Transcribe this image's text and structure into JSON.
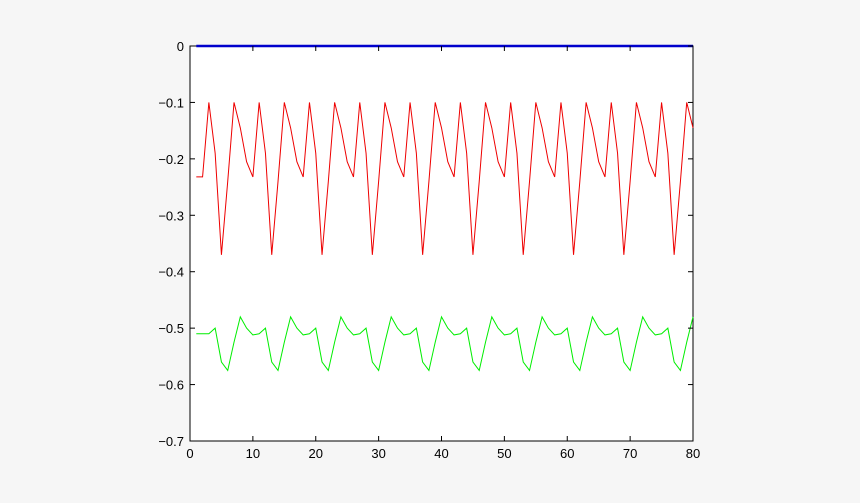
{
  "chart_data": {
    "type": "line",
    "title": "",
    "xlabel": "",
    "ylabel": "",
    "xlim": [
      0,
      80
    ],
    "ylim": [
      -0.7,
      0
    ],
    "grid": false,
    "legend": "none",
    "x_ticks": [
      0,
      10,
      20,
      30,
      40,
      50,
      60,
      70,
      80
    ],
    "x_tick_labels": [
      "0",
      "10",
      "20",
      "30",
      "40",
      "50",
      "60",
      "70",
      "80"
    ],
    "y_ticks": [
      0,
      -0.1,
      -0.2,
      -0.3,
      -0.4,
      -0.5,
      -0.6,
      -0.7
    ],
    "y_tick_labels": [
      "0",
      "−0.1",
      "−0.2",
      "−0.3",
      "−0.4",
      "−0.5",
      "−0.6",
      "−0.7"
    ],
    "x": [
      1,
      2,
      3,
      4,
      5,
      6,
      7,
      8,
      9,
      10,
      11,
      12,
      13,
      14,
      15,
      16,
      17,
      18,
      19,
      20,
      21,
      22,
      23,
      24,
      25,
      26,
      27,
      28,
      29,
      30,
      31,
      32,
      33,
      34,
      35,
      36,
      37,
      38,
      39,
      40,
      41,
      42,
      43,
      44,
      45,
      46,
      47,
      48,
      49,
      50,
      51,
      52,
      53,
      54,
      55,
      56,
      57,
      58,
      59,
      60,
      61,
      62,
      63,
      64,
      65,
      66,
      67,
      68,
      69,
      70,
      71,
      72,
      73,
      74,
      75,
      76,
      77,
      78,
      79,
      80
    ],
    "series": [
      {
        "color": "#0000cc",
        "line_width": 2.5,
        "values": [
          0,
          0,
          0,
          0,
          0,
          0,
          0,
          0,
          0,
          0,
          0,
          0,
          0,
          0,
          0,
          0,
          0,
          0,
          0,
          0,
          0,
          0,
          0,
          0,
          0,
          0,
          0,
          0,
          0,
          0,
          0,
          0,
          0,
          0,
          0,
          0,
          0,
          0,
          0,
          0,
          0,
          0,
          0,
          0,
          0,
          0,
          0,
          0,
          0,
          0,
          0,
          0,
          0,
          0,
          0,
          0,
          0,
          0,
          0,
          0,
          0,
          0,
          0,
          0,
          0,
          0,
          0,
          0,
          0,
          0,
          0,
          0,
          0,
          0,
          0,
          0,
          0,
          0,
          0,
          0
        ]
      },
      {
        "color": "#ee0000",
        "line_width": 1,
        "values": [
          -0.232,
          -0.232,
          -0.1,
          -0.19,
          -0.37,
          -0.24,
          -0.1,
          -0.145,
          -0.205,
          -0.232,
          -0.1,
          -0.19,
          -0.37,
          -0.24,
          -0.1,
          -0.145,
          -0.205,
          -0.232,
          -0.1,
          -0.19,
          -0.37,
          -0.24,
          -0.1,
          -0.145,
          -0.205,
          -0.232,
          -0.1,
          -0.19,
          -0.37,
          -0.24,
          -0.1,
          -0.145,
          -0.205,
          -0.232,
          -0.1,
          -0.19,
          -0.37,
          -0.24,
          -0.1,
          -0.145,
          -0.205,
          -0.232,
          -0.1,
          -0.19,
          -0.37,
          -0.24,
          -0.1,
          -0.145,
          -0.205,
          -0.232,
          -0.1,
          -0.19,
          -0.37,
          -0.24,
          -0.1,
          -0.145,
          -0.205,
          -0.232,
          -0.1,
          -0.19,
          -0.37,
          -0.24,
          -0.1,
          -0.145,
          -0.205,
          -0.232,
          -0.1,
          -0.19,
          -0.37,
          -0.24,
          -0.1,
          -0.145,
          -0.205,
          -0.232,
          -0.1,
          -0.19,
          -0.37,
          -0.24,
          -0.1,
          -0.145
        ]
      },
      {
        "color": "#00ee00",
        "line_width": 1,
        "values": [
          -0.51,
          -0.51,
          -0.51,
          -0.5,
          -0.56,
          -0.575,
          -0.525,
          -0.48,
          -0.5,
          -0.512,
          -0.51,
          -0.5,
          -0.56,
          -0.575,
          -0.525,
          -0.48,
          -0.5,
          -0.512,
          -0.51,
          -0.5,
          -0.56,
          -0.575,
          -0.525,
          -0.48,
          -0.5,
          -0.512,
          -0.51,
          -0.5,
          -0.56,
          -0.575,
          -0.525,
          -0.48,
          -0.5,
          -0.512,
          -0.51,
          -0.5,
          -0.56,
          -0.575,
          -0.525,
          -0.48,
          -0.5,
          -0.512,
          -0.51,
          -0.5,
          -0.56,
          -0.575,
          -0.525,
          -0.48,
          -0.5,
          -0.512,
          -0.51,
          -0.5,
          -0.56,
          -0.575,
          -0.525,
          -0.48,
          -0.5,
          -0.512,
          -0.51,
          -0.5,
          -0.56,
          -0.575,
          -0.525,
          -0.48,
          -0.5,
          -0.512,
          -0.51,
          -0.5,
          -0.56,
          -0.575,
          -0.525,
          -0.48,
          -0.5,
          -0.512,
          -0.51,
          -0.5,
          -0.56,
          -0.575,
          -0.525,
          -0.48
        ]
      }
    ]
  }
}
